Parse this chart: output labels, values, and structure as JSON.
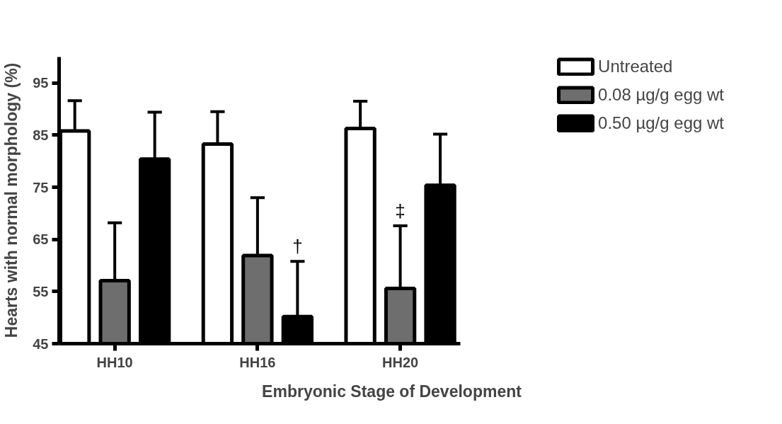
{
  "chart_data": {
    "type": "bar",
    "xlabel": "Embryonic Stage of Development",
    "ylabel": "Hearts with normal morphology (%)",
    "categories": [
      "HH10",
      "HH16",
      "HH20"
    ],
    "series": [
      {
        "name": "Untreated",
        "color": "#ffffff",
        "values": [
          85.8,
          83.3,
          86.3
        ],
        "errors": [
          [
            85.8,
            91.6
          ],
          [
            83.3,
            89.5
          ],
          [
            86.3,
            91.5
          ]
        ]
      },
      {
        "name": "0.08 µg/g egg wt",
        "color": "#6e6e6e",
        "values": [
          57.1,
          61.9,
          55.6
        ],
        "errors": [
          [
            57.1,
            68.2
          ],
          [
            61.9,
            73.0
          ],
          [
            55.6,
            67.6
          ]
        ]
      },
      {
        "name": "0.50 µg/g egg wt",
        "color": "#000000",
        "values": [
          80.4,
          50.2,
          75.4
        ],
        "errors": [
          [
            80.4,
            89.4
          ],
          [
            50.2,
            60.8
          ],
          [
            75.4,
            85.2
          ]
        ]
      }
    ],
    "ylim": [
      45,
      100
    ],
    "yticks": [
      45,
      55,
      65,
      75,
      85,
      95
    ],
    "grid": false,
    "legend": "right",
    "annotations": [
      "†",
      "‡"
    ]
  }
}
